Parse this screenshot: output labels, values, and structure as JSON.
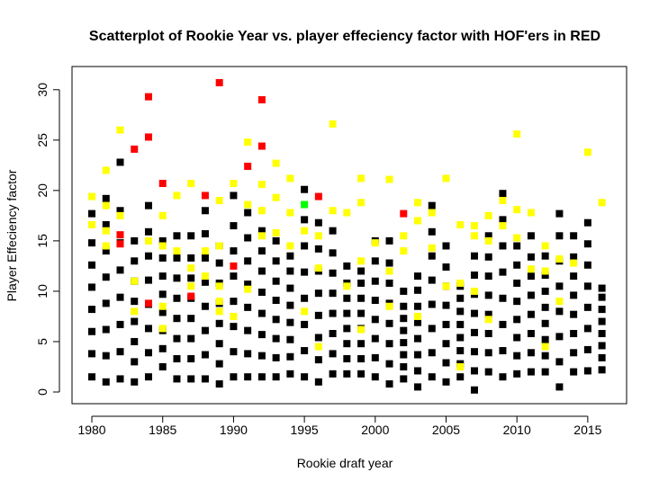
{
  "chart_data": {
    "type": "scatter",
    "title": "Scatterplot of Rookie Year vs. player effeciency factor with HOF'ers in RED",
    "x_label": "Rookie draft year",
    "y_label": "Player Effeciency factor",
    "xlim": [
      1978.6,
      2017.74
    ],
    "ylim": [
      -1.16,
      32.3
    ],
    "xticks": [
      1980,
      1985,
      1990,
      1995,
      2000,
      2005,
      2010,
      2015
    ],
    "yticks": [
      0,
      5,
      10,
      15,
      20,
      25,
      30
    ],
    "series": [
      {
        "color": "#000000",
        "x": [
          1980,
          1980,
          1980,
          1980,
          1980,
          1980,
          1980,
          1980,
          1981,
          1981,
          1981,
          1981,
          1981,
          1981,
          1981,
          1981,
          1982,
          1982,
          1982,
          1982,
          1982,
          1982,
          1982,
          1982,
          1983,
          1983,
          1983,
          1983,
          1983,
          1983,
          1983,
          1983,
          1984,
          1984,
          1984,
          1984,
          1984,
          1984,
          1984,
          1984,
          1985,
          1985,
          1985,
          1985,
          1985,
          1985,
          1985,
          1985,
          1986,
          1986,
          1986,
          1986,
          1986,
          1986,
          1986,
          1986,
          1987,
          1987,
          1987,
          1987,
          1987,
          1987,
          1987,
          1987,
          1988,
          1988,
          1988,
          1988,
          1988,
          1988,
          1988,
          1988,
          1989,
          1989,
          1989,
          1989,
          1989,
          1989,
          1989,
          1989,
          1990,
          1990,
          1990,
          1990,
          1990,
          1990,
          1990,
          1990,
          1991,
          1991,
          1991,
          1991,
          1991,
          1991,
          1991,
          1991,
          1992,
          1992,
          1992,
          1992,
          1992,
          1992,
          1992,
          1992,
          1993,
          1993,
          1993,
          1993,
          1993,
          1993,
          1993,
          1993,
          1994,
          1994,
          1994,
          1994,
          1994,
          1994,
          1994,
          1994,
          1995,
          1995,
          1995,
          1995,
          1995,
          1995,
          1995,
          1995,
          1996,
          1996,
          1996,
          1996,
          1996,
          1996,
          1996,
          1996,
          1997,
          1997,
          1997,
          1997,
          1997,
          1997,
          1997,
          1997,
          1998,
          1998,
          1998,
          1998,
          1998,
          1998,
          1998,
          1998,
          1999,
          1999,
          1999,
          1999,
          1999,
          1999,
          1999,
          1999,
          2000,
          2000,
          2000,
          2000,
          2000,
          2000,
          2000,
          2000,
          2001,
          2001,
          2001,
          2001,
          2001,
          2001,
          2001,
          2001,
          2002,
          2002,
          2002,
          2002,
          2002,
          2002,
          2002,
          2002,
          2003,
          2003,
          2003,
          2003,
          2003,
          2003,
          2003,
          2003,
          2004,
          2004,
          2004,
          2004,
          2004,
          2004,
          2004,
          2004,
          2005,
          2005,
          2005,
          2005,
          2005,
          2005,
          2005,
          2005,
          2006,
          2006,
          2006,
          2006,
          2006,
          2006,
          2006,
          2006,
          2007,
          2007,
          2007,
          2007,
          2007,
          2007,
          2007,
          2007,
          2008,
          2008,
          2008,
          2008,
          2008,
          2008,
          2008,
          2008,
          2009,
          2009,
          2009,
          2009,
          2009,
          2009,
          2009,
          2009,
          2010,
          2010,
          2010,
          2010,
          2010,
          2010,
          2010,
          2010,
          2011,
          2011,
          2011,
          2011,
          2011,
          2011,
          2011,
          2011,
          2012,
          2012,
          2012,
          2012,
          2012,
          2012,
          2012,
          2012,
          2013,
          2013,
          2013,
          2013,
          2013,
          2013,
          2013,
          2013,
          2014,
          2014,
          2014,
          2014,
          2014,
          2014,
          2014,
          2014,
          2015,
          2015,
          2015,
          2015,
          2015,
          2015,
          2015,
          2015,
          2016,
          2016,
          2016,
          2016,
          2016,
          2016,
          2016,
          2016
        ],
        "values": [
          1.5,
          3.8,
          6,
          8.2,
          10.4,
          12.6,
          14.8,
          17.7,
          1,
          3.6,
          6.2,
          8.8,
          11.4,
          14,
          16.6,
          19.2,
          1.3,
          4,
          6.7,
          9.4,
          12.1,
          14.8,
          18,
          22.8,
          1,
          3,
          5,
          7,
          9,
          11,
          13,
          15,
          1.5,
          3.9,
          6.3,
          8.7,
          11.1,
          13.5,
          15.9,
          18.5,
          2.5,
          4.3,
          6.1,
          7.9,
          9.7,
          11.5,
          13.3,
          15,
          1.3,
          3.3,
          5.3,
          7.3,
          9.3,
          11.3,
          13.3,
          15.5,
          1.3,
          3.3,
          5.3,
          7.3,
          9.3,
          11.3,
          13.3,
          15.5,
          1.3,
          3.7,
          6.1,
          8.5,
          10.9,
          13.3,
          15.7,
          18,
          0.8,
          2.8,
          4.8,
          6.8,
          8.8,
          10.8,
          12.8,
          14.5,
          1.5,
          4,
          6.5,
          9,
          11.5,
          14,
          16.5,
          19.5,
          1.5,
          3.8,
          6.1,
          8.4,
          10.7,
          13,
          15.3,
          17.8,
          1.5,
          3.6,
          5.7,
          7.8,
          9.9,
          12,
          14,
          16,
          1.5,
          3.4,
          5.3,
          7.2,
          9.1,
          11,
          13,
          15,
          1.8,
          3.5,
          5.2,
          6.9,
          8.6,
          10.3,
          12,
          13.5,
          1.5,
          4.1,
          6.7,
          9.3,
          11.9,
          14.5,
          17.1,
          20.1,
          1,
          3.2,
          5.4,
          7.6,
          9.8,
          12,
          14.2,
          16.8,
          1.8,
          3.8,
          5.8,
          7.8,
          9.8,
          11.8,
          13.8,
          16,
          1.8,
          3.3,
          4.8,
          6.3,
          7.8,
          9.3,
          10.8,
          12.5,
          1.8,
          3.3,
          4.8,
          6.3,
          7.8,
          9.3,
          10.8,
          12,
          1.5,
          3.4,
          5.3,
          7.2,
          9.1,
          11,
          13,
          15,
          0.8,
          2.8,
          4.8,
          6.8,
          8.8,
          10.8,
          12.8,
          15,
          1.3,
          2.5,
          3.7,
          4.9,
          6.1,
          7.3,
          8.5,
          10,
          0.5,
          2.1,
          3.7,
          5.3,
          6.9,
          8.5,
          10.1,
          11.5,
          1.5,
          3.9,
          6.3,
          8.7,
          11.1,
          13.5,
          15.9,
          18.5,
          1,
          2.9,
          4.8,
          6.7,
          8.6,
          10.5,
          12.4,
          14.5,
          1.5,
          2.8,
          4.1,
          5.4,
          6.7,
          8,
          9.3,
          10.5,
          0.2,
          2.1,
          4,
          5.9,
          7.8,
          9.7,
          11.6,
          13.5,
          2,
          3.9,
          5.8,
          7.7,
          9.6,
          11.5,
          13.4,
          15.5,
          1.5,
          4.1,
          6.7,
          9.3,
          11.9,
          14.5,
          17.1,
          19.7,
          1.8,
          3.6,
          5.4,
          7.2,
          9,
          10.8,
          12.6,
          14.5,
          2,
          3.9,
          5.8,
          7.7,
          9.6,
          11.5,
          13.4,
          15.5,
          2,
          3.6,
          5.2,
          6.8,
          8.4,
          10,
          11.6,
          13.5,
          0.5,
          3,
          5.5,
          8,
          10.5,
          13,
          15.5,
          17.7,
          2,
          3.9,
          5.8,
          7.7,
          9.6,
          11.5,
          13.4,
          15.5,
          2.1,
          4.2,
          6.3,
          8.4,
          10.5,
          12.6,
          14.7,
          16.8,
          2.2,
          3.4,
          4.6,
          5.8,
          7,
          8.2,
          9.4,
          10.3
        ]
      },
      {
        "color": "#ffff00",
        "x": [
          1980,
          1980,
          1981,
          1981,
          1981,
          1981,
          1982,
          1982,
          1983,
          1983,
          1984,
          1985,
          1985,
          1985,
          1985,
          1986,
          1986,
          1987,
          1987,
          1987,
          1988,
          1988,
          1989,
          1989,
          1989,
          1989,
          1989,
          1990,
          1990,
          1991,
          1991,
          1991,
          1992,
          1992,
          1992,
          1993,
          1993,
          1993,
          1994,
          1994,
          1994,
          1995,
          1995,
          1996,
          1996,
          1996,
          1997,
          1997,
          1998,
          1998,
          1999,
          1999,
          1999,
          1999,
          2000,
          2001,
          2001,
          2001,
          2002,
          2002,
          2003,
          2003,
          2003,
          2004,
          2004,
          2005,
          2005,
          2006,
          2006,
          2006,
          2007,
          2007,
          2007,
          2008,
          2008,
          2008,
          2009,
          2009,
          2010,
          2010,
          2010,
          2011,
          2011,
          2012,
          2012,
          2012,
          2013,
          2013,
          2014,
          2015,
          2016
        ],
        "values": [
          19.4,
          16.6,
          22,
          18.5,
          16,
          14.5,
          26,
          17.5,
          11,
          8,
          15,
          17.5,
          14.5,
          8.5,
          6.3,
          19.5,
          14,
          20.7,
          12.3,
          10.5,
          14,
          11.5,
          19,
          14.5,
          10.5,
          9,
          8,
          20.7,
          7.5,
          24.8,
          18.6,
          10.2,
          20.6,
          18,
          15.5,
          22.7,
          19.3,
          15.8,
          21.2,
          17.8,
          14.5,
          16,
          8,
          15.5,
          12.3,
          4.5,
          26.6,
          18,
          17.8,
          10.5,
          21.2,
          18.8,
          13,
          6.2,
          14.8,
          21.1,
          12,
          8.5,
          15.5,
          14,
          18.8,
          17,
          7.5,
          17.8,
          14.3,
          21.2,
          10.5,
          16.6,
          10.8,
          2.5,
          16.5,
          15.5,
          10,
          17.5,
          15,
          7.2,
          19,
          16.5,
          25.6,
          18.1,
          15.3,
          17.8,
          12.2,
          14.5,
          12,
          4.5,
          13.2,
          9,
          12.8,
          23.8,
          18.8
        ]
      },
      {
        "color": "#ff0000",
        "x": [
          1982,
          1982,
          1983,
          1984,
          1984,
          1984,
          1985,
          1987,
          1988,
          1989,
          1990,
          1991,
          1992,
          1992,
          1996,
          2002
        ],
        "values": [
          15.6,
          14.7,
          24.1,
          29.3,
          25.3,
          8.8,
          20.7,
          9.5,
          19.5,
          30.7,
          12.5,
          22.4,
          29,
          24.4,
          19.4,
          17.7
        ]
      },
      {
        "color": "#00ff00",
        "x": [
          1995
        ],
        "values": [
          18.6
        ]
      }
    ]
  }
}
